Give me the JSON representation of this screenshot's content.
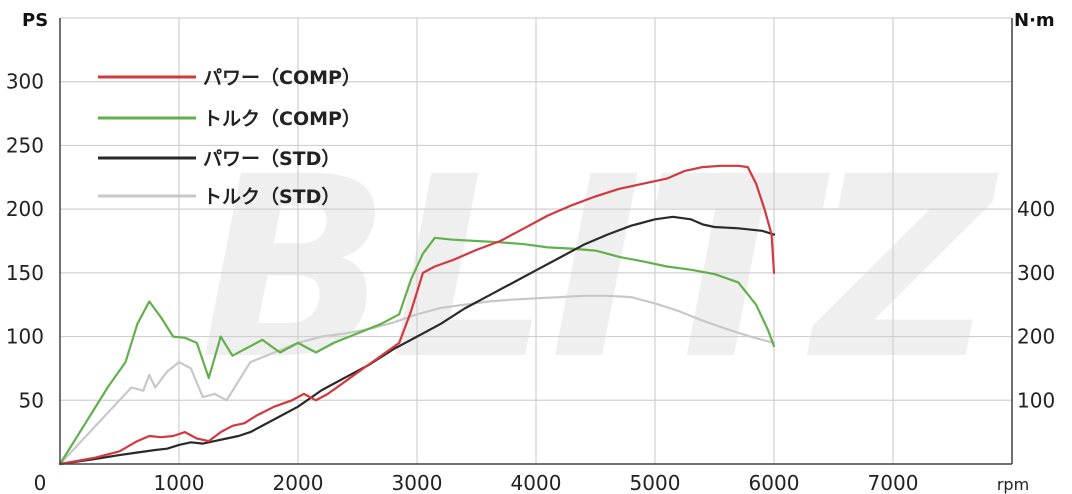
{
  "chart_data": {
    "type": "line",
    "watermark": "BLITZ",
    "xlabel": "rpm",
    "ylabel_left": "PS",
    "ylabel_right": "N·m",
    "xlim": [
      0,
      8000
    ],
    "ylim_left": [
      0,
      350
    ],
    "ylim_right": [
      0,
      700
    ],
    "x_ticks": [
      0,
      1000,
      2000,
      3000,
      4000,
      5000,
      6000,
      7000
    ],
    "y_left_ticks": [
      50,
      100,
      150,
      200,
      250,
      300
    ],
    "y_right_ticks": [
      100,
      200,
      300,
      400
    ],
    "grid": true,
    "legend_position": "top-left",
    "series": [
      {
        "name": "パワー（COMP）",
        "axis": "left",
        "color": "#d2383e",
        "x": [
          0,
          300,
          500,
          650,
          750,
          850,
          950,
          1050,
          1150,
          1250,
          1350,
          1450,
          1550,
          1650,
          1800,
          1950,
          2050,
          2150,
          2250,
          2400,
          2550,
          2700,
          2850,
          2950,
          3050,
          3150,
          3300,
          3500,
          3700,
          3900,
          4100,
          4300,
          4500,
          4700,
          4900,
          5100,
          5250,
          5400,
          5550,
          5700,
          5780,
          5850,
          5920,
          5980,
          6000
        ],
        "y": [
          0,
          5,
          10,
          18,
          22,
          21,
          22,
          25,
          20,
          18,
          25,
          30,
          32,
          38,
          45,
          50,
          55,
          50,
          55,
          65,
          75,
          85,
          95,
          120,
          150,
          155,
          160,
          168,
          175,
          185,
          195,
          203,
          210,
          216,
          220,
          224,
          230,
          233,
          234,
          234,
          233,
          220,
          200,
          180,
          150
        ]
      },
      {
        "name": "トルク（COMP）",
        "axis": "right",
        "color": "#62b04c",
        "x": [
          0,
          200,
          400,
          550,
          650,
          750,
          850,
          950,
          1050,
          1150,
          1250,
          1350,
          1450,
          1550,
          1700,
          1850,
          2000,
          2150,
          2300,
          2500,
          2700,
          2850,
          2950,
          3050,
          3150,
          3300,
          3500,
          3700,
          3900,
          4100,
          4300,
          4500,
          4700,
          4900,
          5100,
          5300,
          5500,
          5700,
          5850,
          5950,
          6000
        ],
        "y": [
          0,
          60,
          120,
          160,
          220,
          255,
          230,
          200,
          198,
          190,
          135,
          200,
          170,
          180,
          195,
          175,
          190,
          175,
          190,
          205,
          220,
          235,
          290,
          330,
          355,
          352,
          350,
          348,
          345,
          340,
          338,
          335,
          325,
          318,
          310,
          305,
          298,
          285,
          250,
          210,
          185
        ]
      },
      {
        "name": "パワー（STD）",
        "axis": "left",
        "color": "#2a2a2a",
        "x": [
          0,
          300,
          500,
          650,
          800,
          900,
          1000,
          1100,
          1200,
          1300,
          1400,
          1500,
          1600,
          1800,
          2000,
          2200,
          2400,
          2600,
          2800,
          3000,
          3200,
          3400,
          3600,
          3800,
          4000,
          4200,
          4400,
          4600,
          4800,
          5000,
          5150,
          5300,
          5400,
          5500,
          5700,
          5900,
          6000
        ],
        "y": [
          0,
          4,
          7,
          9,
          11,
          12,
          15,
          17,
          16,
          18,
          20,
          22,
          25,
          35,
          45,
          58,
          68,
          78,
          90,
          100,
          110,
          122,
          132,
          142,
          152,
          162,
          172,
          180,
          187,
          192,
          194,
          192,
          188,
          186,
          185,
          183,
          180
        ]
      },
      {
        "name": "トルク（STD）",
        "axis": "right",
        "color": "#c8c8c8",
        "x": [
          0,
          300,
          500,
          600,
          700,
          750,
          800,
          900,
          1000,
          1100,
          1200,
          1300,
          1400,
          1500,
          1600,
          1800,
          2000,
          2200,
          2400,
          2600,
          2800,
          3000,
          3200,
          3400,
          3600,
          3800,
          4000,
          4200,
          4400,
          4600,
          4800,
          5000,
          5200,
          5400,
          5600,
          5800,
          6000
        ],
        "y": [
          0,
          60,
          100,
          120,
          115,
          140,
          120,
          145,
          160,
          150,
          105,
          110,
          100,
          130,
          160,
          175,
          190,
          200,
          205,
          212,
          222,
          235,
          245,
          250,
          255,
          258,
          260,
          262,
          264,
          264,
          262,
          252,
          240,
          225,
          212,
          200,
          190
        ]
      }
    ]
  }
}
